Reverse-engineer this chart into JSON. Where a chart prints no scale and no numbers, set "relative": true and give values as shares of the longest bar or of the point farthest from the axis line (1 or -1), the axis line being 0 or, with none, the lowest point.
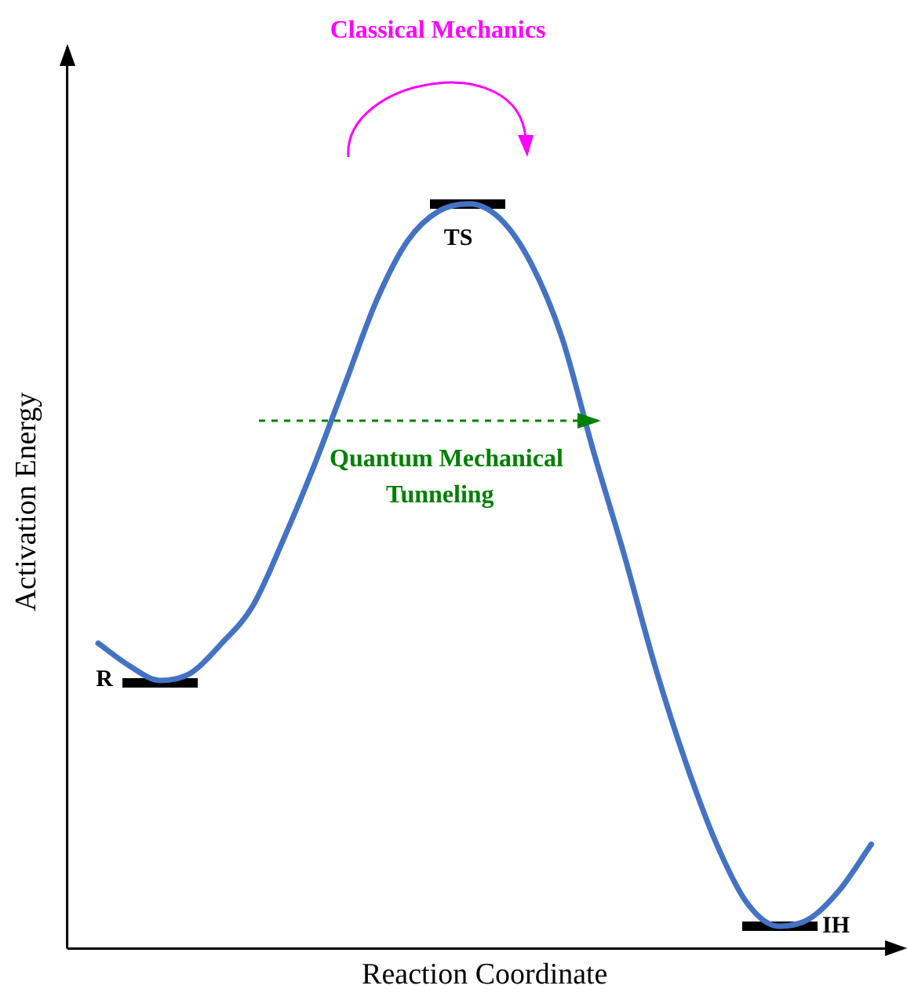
{
  "chart_data": {
    "type": "line",
    "relative": true,
    "xlabel": "Reaction Coordinate",
    "ylabel": "Activation Energy",
    "grid": false,
    "legend": false,
    "marker": "none",
    "line_style": "solid",
    "categories": [
      null,
      null,
      null,
      null,
      null,
      null,
      null,
      null,
      null,
      null,
      null,
      null,
      null,
      null,
      null,
      null,
      null,
      null,
      null,
      null,
      null,
      null,
      null,
      null,
      null,
      null,
      null,
      null
    ],
    "series": [
      {
        "color": "#4472c4",
        "values": [
          null,
          0.41,
          0.38,
          0.36,
          0.37,
          0.41,
          0.46,
          0.55,
          0.65,
          0.76,
          0.87,
          0.95,
          0.99,
          1.0,
          0.98,
          0.92,
          0.82,
          0.67,
          0.53,
          0.38,
          0.25,
          0.14,
          0.06,
          0.03,
          0.04,
          0.08,
          0.14,
          null
        ]
      }
    ],
    "annotations": [
      "Classical Mechanics",
      "Quantum Mechanical Tunneling",
      "R",
      "TS",
      "IH"
    ]
  }
}
